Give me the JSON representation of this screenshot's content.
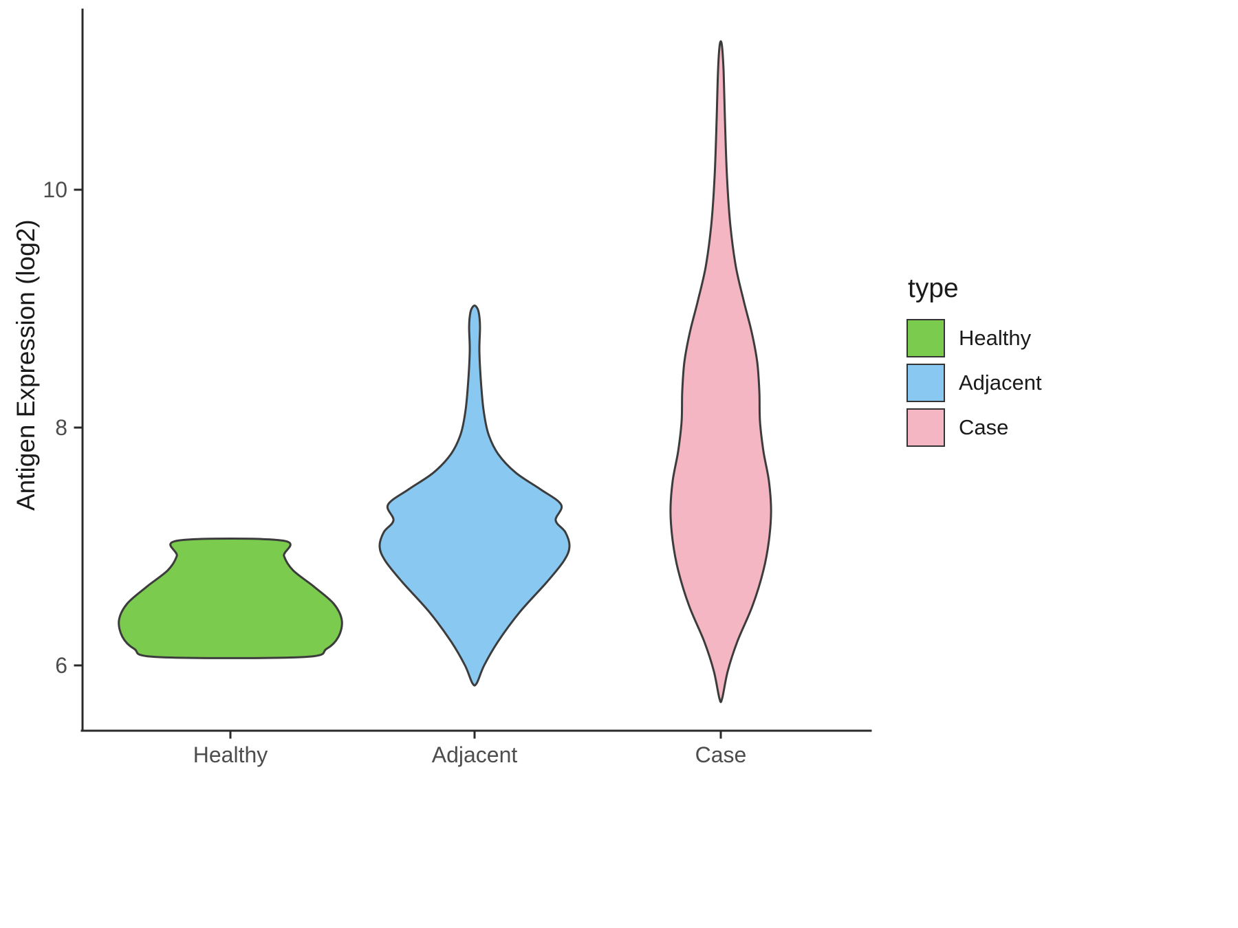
{
  "chart_data": {
    "type": "violin",
    "title": "",
    "xlabel": "",
    "ylabel": "Antigen Expression (log2)",
    "ylim": [
      5.4,
      11.5
    ],
    "yticks": [
      6,
      8,
      10
    ],
    "grid": false,
    "legend_position": "right",
    "categories": [
      "Healthy",
      "Adjacent",
      "Case"
    ],
    "legend": {
      "title": "type",
      "entries": [
        {
          "label": "Healthy",
          "color": "#7BCB4E"
        },
        {
          "label": "Adjacent",
          "color": "#89C8F0"
        },
        {
          "label": "Case",
          "color": "#F4B6C2"
        }
      ]
    },
    "stroke_color": "#3c3c3c",
    "axis_color": "#2a2a2a",
    "series": [
      {
        "name": "Healthy",
        "color": "#7BCB4E",
        "profile": [
          [
            6.07,
            0.648
          ],
          [
            6.14,
            0.864
          ],
          [
            6.24,
            0.969
          ],
          [
            6.38,
            1.0
          ],
          [
            6.52,
            0.926
          ],
          [
            6.66,
            0.753
          ],
          [
            6.8,
            0.562
          ],
          [
            6.92,
            0.481
          ],
          [
            7.05,
            0.469
          ]
        ]
      },
      {
        "name": "Adjacent",
        "color": "#89C8F0",
        "profile": [
          [
            5.85,
            0.019
          ],
          [
            6.0,
            0.086
          ],
          [
            6.2,
            0.21
          ],
          [
            6.45,
            0.407
          ],
          [
            6.7,
            0.648
          ],
          [
            6.88,
            0.802
          ],
          [
            7.0,
            0.852
          ],
          [
            7.12,
            0.815
          ],
          [
            7.22,
            0.728
          ],
          [
            7.35,
            0.778
          ],
          [
            7.48,
            0.593
          ],
          [
            7.62,
            0.37
          ],
          [
            7.78,
            0.21
          ],
          [
            7.95,
            0.123
          ],
          [
            8.15,
            0.08
          ],
          [
            8.4,
            0.056
          ],
          [
            8.65,
            0.043
          ],
          [
            8.85,
            0.049
          ],
          [
            8.97,
            0.037
          ],
          [
            9.02,
            0.012
          ]
        ]
      },
      {
        "name": "Case",
        "color": "#F4B6C2",
        "profile": [
          [
            5.72,
            0.012
          ],
          [
            5.95,
            0.062
          ],
          [
            6.2,
            0.148
          ],
          [
            6.5,
            0.284
          ],
          [
            6.8,
            0.383
          ],
          [
            7.05,
            0.432
          ],
          [
            7.3,
            0.451
          ],
          [
            7.55,
            0.432
          ],
          [
            7.8,
            0.383
          ],
          [
            8.05,
            0.352
          ],
          [
            8.3,
            0.346
          ],
          [
            8.55,
            0.327
          ],
          [
            8.8,
            0.278
          ],
          [
            9.05,
            0.21
          ],
          [
            9.35,
            0.136
          ],
          [
            9.7,
            0.086
          ],
          [
            10.1,
            0.056
          ],
          [
            10.6,
            0.037
          ],
          [
            11.0,
            0.025
          ],
          [
            11.22,
            0.009
          ]
        ]
      }
    ]
  }
}
